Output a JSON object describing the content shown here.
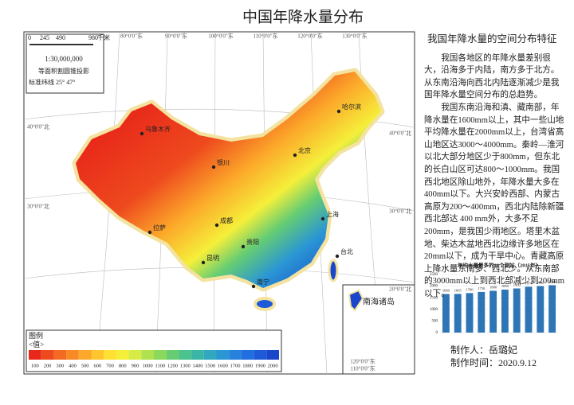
{
  "title": "中国年降水量分布",
  "scale_bar": {
    "ticks": [
      "0",
      "245",
      "490",
      "980"
    ],
    "unit": "千米"
  },
  "scale": "1:30,000,000",
  "projection": "等面积割圆锥投影",
  "parallels": "标准纬线 25° 47°",
  "graticule": {
    "top": [
      "80°0'0\"东",
      "90°0'0\"东",
      "100°0'0\"东",
      "110°0'0\"东",
      "120°0'0\"东",
      "130°0'0\"东"
    ],
    "left": [
      "40°0'0\"北",
      "30°0'0\"北"
    ],
    "right": [
      "40°0'0\"北",
      "30°0'0\"北",
      "20°0'0\"北"
    ],
    "bottom": [
      "120°0'0\"东",
      "110°0'0\"东"
    ]
  },
  "cities": [
    "乌鲁木齐",
    "哈尔滨",
    "北京",
    "银川",
    "拉萨",
    "成都",
    "贵阳",
    "昆明",
    "南宁",
    "上海",
    "台北"
  ],
  "inset": "南海诸岛",
  "legend": {
    "title": "图例",
    "subtitle": "<值>",
    "labels": [
      "100",
      "200",
      "300",
      "400",
      "500",
      "600",
      "700",
      "800",
      "900",
      "1000",
      "1100",
      "1200",
      "1300",
      "1400",
      "1500",
      "1600",
      "1700",
      "1800",
      "1900",
      "2000"
    ],
    "colors": [
      "#e8281a",
      "#ee4a1e",
      "#f46a22",
      "#f88a26",
      "#fca82a",
      "#ffc52e",
      "#ffe033",
      "#f5ef3a",
      "#d6ec44",
      "#b0e250",
      "#8ad85c",
      "#66cd72",
      "#4cc28c",
      "#3ab6a6",
      "#30a8c0",
      "#2a96d4",
      "#2682dc",
      "#226ede",
      "#1e5ad8",
      "#1a46cc"
    ]
  },
  "side": {
    "title": "我国年降水量的空间分布特征",
    "paragraphs": [
      "我国各地区的年降水量差别很大，沿海多于内陆，南方多于北方。从东南沿海向西北内陆逐渐减少是我国年降水量空间分布的总趋势。",
      "我国东南沿海和滇、藏南部，年降水量在1600mm以上，其中一些山地平均降水量在2000mm以上，台湾省高山地区达3000～4000mm。秦岭—淮河以北大部分地区少于800mm，但东北的长白山区可达800～1000mm。我国西北地区除山地外，年降水量大多在400mm以下。大兴安岭西部、内蒙古高原为200～400mm，西北内陆除新疆西北部达 400 mm外，大多不足200mm，是我国少雨地区。塔里木盆地、柴达木盆地西北边缘许多地区在20mm以下，成为干旱中心。青藏高原上降水量东南多、西北少。从东南部的3000mm以上到西北部减少到200mm以下。"
    ]
  },
  "chart_data": {
    "type": "bar",
    "title": "年均水量最多的10个测站（2015年）",
    "categories": [
      null,
      null,
      null,
      null,
      null,
      null,
      null,
      null,
      null,
      null
    ],
    "values": [
      1660,
      1665,
      1700,
      1750,
      1800,
      1850,
      1900,
      1974,
      2002,
      2040
    ],
    "color": "#2e75b6",
    "ylim": [
      0,
      2500
    ],
    "yticks": [
      0,
      500,
      1000,
      1500,
      2000,
      2500
    ]
  },
  "author": "制作人：岳璐妃",
  "date": "制作时间：2020.9.12"
}
